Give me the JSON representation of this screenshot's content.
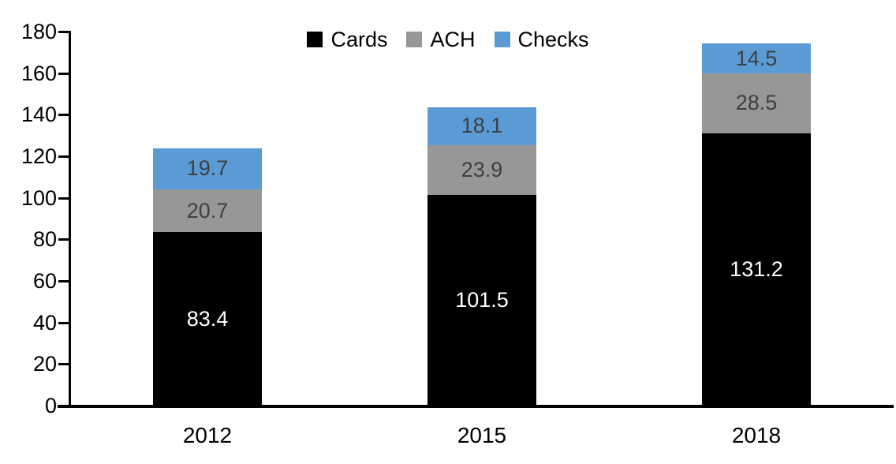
{
  "chart_data": {
    "type": "bar",
    "stacked": true,
    "title": "",
    "xlabel": "",
    "ylabel": "",
    "categories": [
      "2012",
      "2015",
      "2018"
    ],
    "series": [
      {
        "name": "Cards",
        "color": "#000000",
        "label_color": "#ffffff",
        "values": [
          83.4,
          101.5,
          131.2
        ]
      },
      {
        "name": "ACH",
        "color": "#979797",
        "label_color": "#3f3f3f",
        "values": [
          20.7,
          23.9,
          28.5
        ]
      },
      {
        "name": "Checks",
        "color": "#5b9bd5",
        "label_color": "#3f3f3f",
        "values": [
          19.7,
          18.1,
          14.5
        ]
      }
    ],
    "ylim": [
      0,
      180
    ],
    "ytick_step": 20,
    "ytick_labels": [
      "0",
      "20",
      "40",
      "60",
      "80",
      "100",
      "120",
      "140",
      "160",
      "180"
    ],
    "legend_position": "top-center",
    "legend_entries": [
      "Cards",
      "ACH",
      "Checks"
    ],
    "grid": false,
    "data_labels_shown": true,
    "axis_color": "#000000",
    "background_color": "#ffffff"
  }
}
